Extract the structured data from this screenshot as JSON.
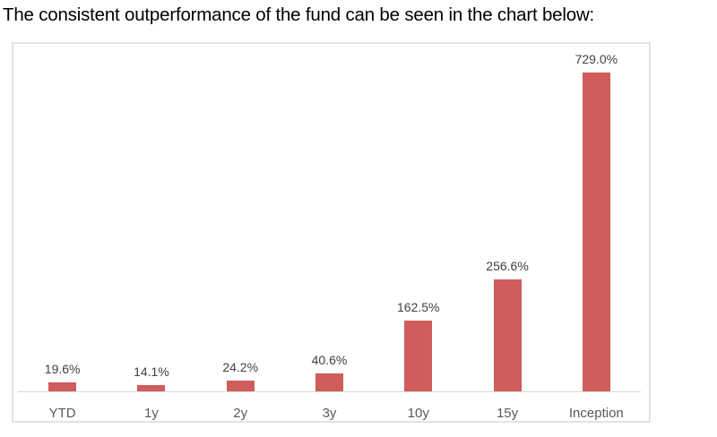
{
  "page": {
    "title": "The consistent outperformance of the fund can be seen in the chart below:"
  },
  "chart_data": {
    "type": "bar",
    "categories": [
      "YTD",
      "1y",
      "2y",
      "3y",
      "10y",
      "15y",
      "Inception"
    ],
    "values": [
      19.6,
      14.1,
      24.2,
      40.6,
      162.5,
      256.6,
      729.0
    ],
    "value_labels": [
      "19.6%",
      "14.1%",
      "24.2%",
      "40.6%",
      "162.5%",
      "256.6%",
      "729.0%"
    ],
    "title": "",
    "xlabel": "",
    "ylabel": "",
    "ylim": [
      0,
      800
    ],
    "grid": false,
    "legend": false,
    "colors": {
      "bar_fill": "#d05c5c",
      "value_label": "#404040",
      "category_label": "#595959",
      "axis_line": "#d9d9d9",
      "chart_border": "#e2e2e2"
    }
  }
}
